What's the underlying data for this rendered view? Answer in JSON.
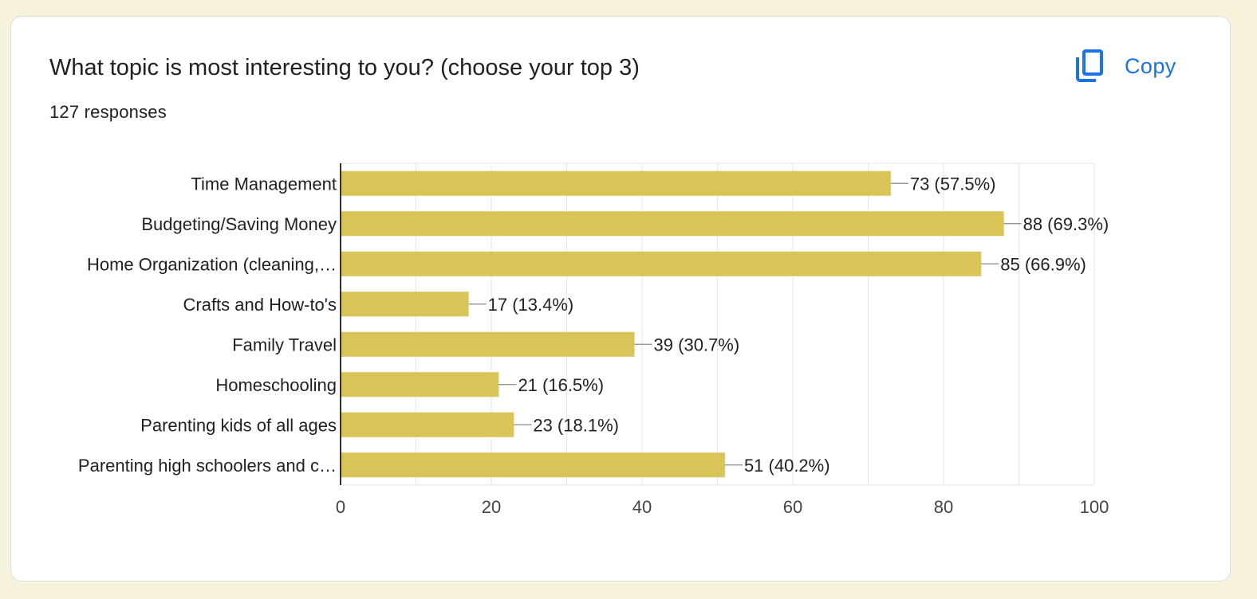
{
  "card": {
    "question": "What topic is most interesting to you? (choose your top 3)",
    "responses": "127 responses",
    "copy_label": "Copy",
    "copy_icon": "copy-icon"
  },
  "colors": {
    "bar": "#d8c457",
    "accent": "#1a73e8",
    "grid": "#e6e6e6",
    "axis": "#333333",
    "text": "#202124",
    "tick": "#444444"
  },
  "chart_data": {
    "type": "bar",
    "orientation": "horizontal",
    "categories": [
      "Time Management",
      "Budgeting/Saving Money",
      "Home Organization (cleaning,…",
      "Crafts and How-to's",
      "Family Travel",
      "Homeschooling",
      "Parenting kids of all ages",
      "Parenting high schoolers and c…"
    ],
    "values": [
      73,
      88,
      85,
      17,
      39,
      21,
      23,
      51
    ],
    "data_labels": [
      "73 (57.5%)",
      "88 (69.3%)",
      "85 (66.9%)",
      "17 (13.4%)",
      "39 (30.7%)",
      "21 (16.5%)",
      "23 (18.1%)",
      "51 (40.2%)"
    ],
    "xlim": [
      0,
      100
    ],
    "xticks": [
      0,
      20,
      40,
      60,
      80,
      100
    ],
    "grid": true,
    "title": "",
    "xlabel": "",
    "ylabel": ""
  }
}
